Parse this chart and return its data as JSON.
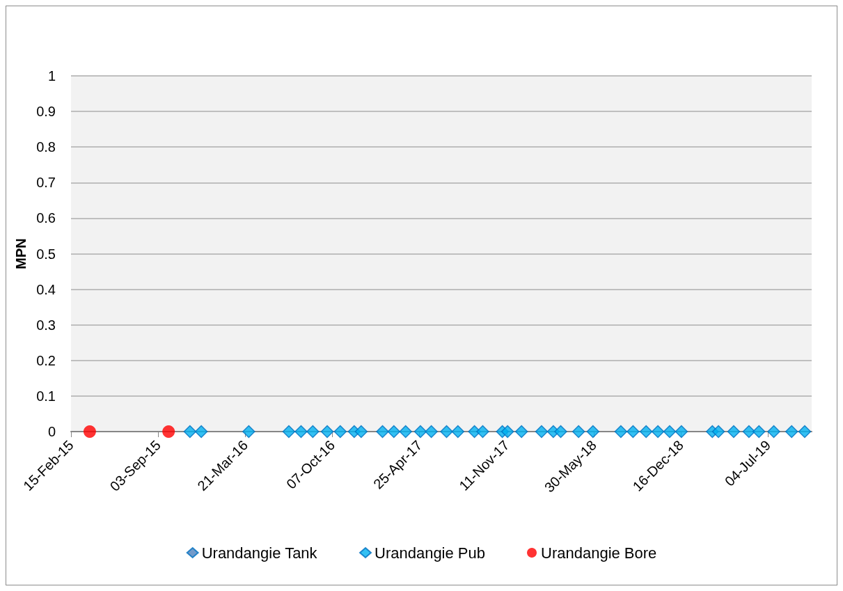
{
  "chart_data": {
    "type": "scatter",
    "ylabel": "MPN",
    "xlim": [
      "2015-02-15",
      "2019-10-12"
    ],
    "xticks": [
      {
        "value": "2015-02-15",
        "label": "15-Feb-15"
      },
      {
        "value": "2015-09-03",
        "label": "03-Sep-15"
      },
      {
        "value": "2016-03-21",
        "label": "21-Mar-16"
      },
      {
        "value": "2016-10-07",
        "label": "07-Oct-16"
      },
      {
        "value": "2017-04-25",
        "label": "25-Apr-17"
      },
      {
        "value": "2017-11-11",
        "label": "11-Nov-17"
      },
      {
        "value": "2018-05-30",
        "label": "30-May-18"
      },
      {
        "value": "2018-12-16",
        "label": "16-Dec-18"
      },
      {
        "value": "2019-07-04",
        "label": "04-Jul-19"
      }
    ],
    "ylim": [
      0,
      1
    ],
    "yticks": [
      0,
      0.1,
      0.2,
      0.3,
      0.4,
      0.5,
      0.6,
      0.7,
      0.8,
      0.9,
      1
    ],
    "grid": "y",
    "legend": "bottom",
    "series": [
      {
        "name": "Urandangie Tank",
        "color": "#4f81bd",
        "marker": "diamond"
      },
      {
        "name": "Urandangie Pub",
        "color": "#00b0f0",
        "marker": "diamond",
        "x": [
          "2015-11-15",
          "2015-12-11",
          "2016-03-29",
          "2016-06-29",
          "2016-07-27",
          "2016-08-23",
          "2016-09-25",
          "2016-10-25",
          "2016-11-26",
          "2016-12-12",
          "2017-01-30",
          "2017-02-25",
          "2017-03-24",
          "2017-04-27",
          "2017-05-22",
          "2017-06-26",
          "2017-07-22",
          "2017-08-29",
          "2017-09-17",
          "2017-11-01",
          "2017-11-13",
          "2017-12-15",
          "2018-01-30",
          "2018-02-26",
          "2018-03-15",
          "2018-04-25",
          "2018-05-28",
          "2018-07-31",
          "2018-08-28",
          "2018-09-27",
          "2018-10-24",
          "2018-11-20",
          "2018-12-17",
          "2019-02-26",
          "2019-03-12",
          "2019-04-16",
          "2019-05-21",
          "2019-06-13",
          "2019-07-17",
          "2019-08-27",
          "2019-09-26"
        ],
        "values": [
          0,
          0,
          0,
          0,
          0,
          0,
          0,
          0,
          0,
          0,
          0,
          0,
          0,
          0,
          0,
          0,
          0,
          0,
          0,
          0,
          0,
          0,
          0,
          0,
          0,
          0,
          0,
          0,
          0,
          0,
          0,
          0,
          0,
          0,
          0,
          0,
          0,
          0,
          0,
          0,
          0
        ]
      },
      {
        "name": "Urandangie Bore",
        "color": "#ff0000",
        "marker": "circle",
        "x": [
          "2015-03-30",
          "2015-09-27"
        ],
        "values": [
          0,
          0
        ]
      }
    ]
  }
}
